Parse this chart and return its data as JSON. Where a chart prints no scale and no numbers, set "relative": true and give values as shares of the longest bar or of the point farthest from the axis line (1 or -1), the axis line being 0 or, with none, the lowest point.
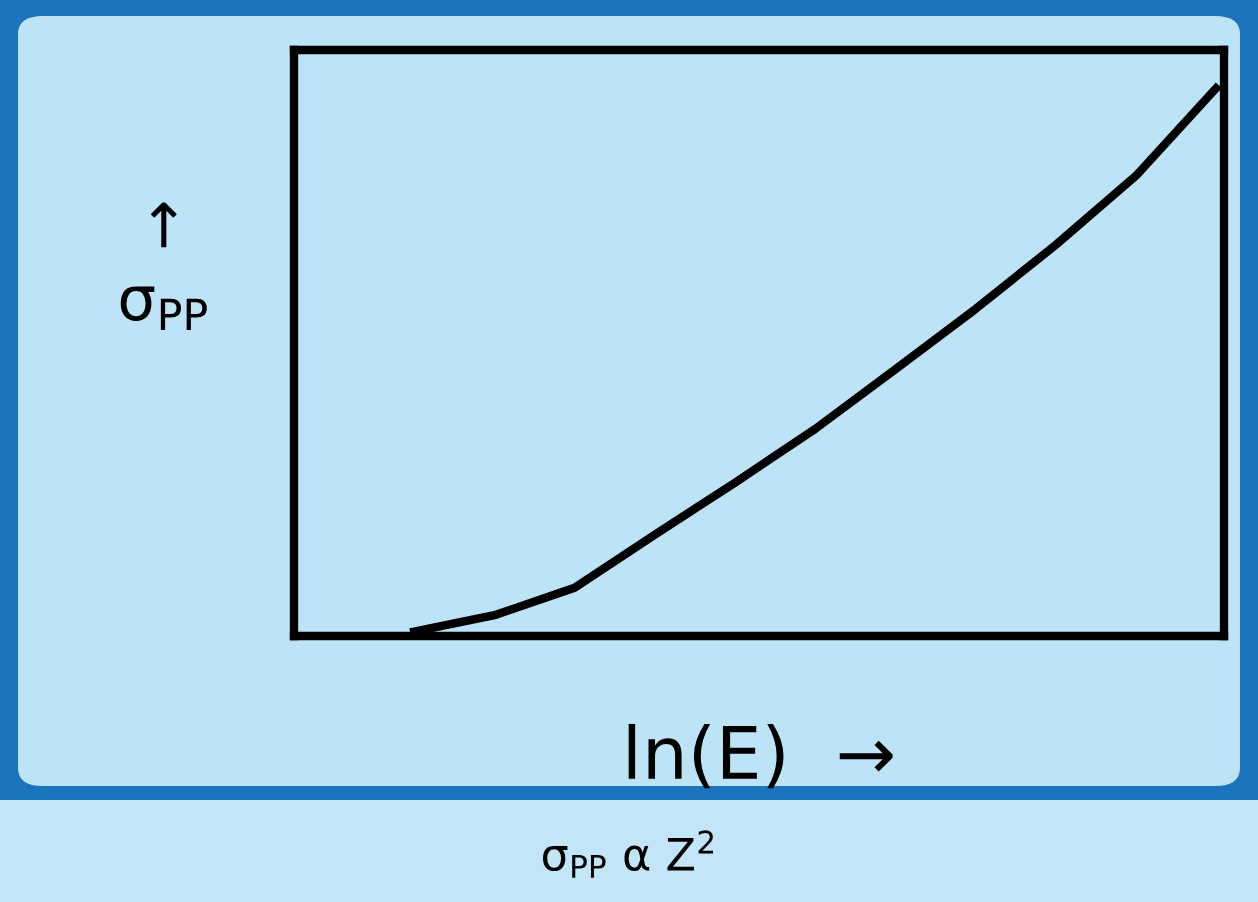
{
  "chart_data": {
    "type": "line",
    "relative": true,
    "tick_labels": false,
    "marker": "none",
    "line_style": "solid",
    "xlabel": "ln(E)  →",
    "ylabel": "↑\nσ$_{PP}$",
    "annotations": [
      "σ$_{PP}$ α Z$^{2}$"
    ],
    "categories": [
      null,
      null,
      null,
      null,
      null,
      null,
      null,
      null,
      null,
      null,
      null
    ],
    "series": [
      {
        "color": "#000000",
        "values": [
          0.008,
          0.038,
          0.088,
          0.185,
          0.28,
          0.378,
          0.487,
          0.597,
          0.714,
          0.84,
          1.0
        ]
      }
    ]
  }
}
